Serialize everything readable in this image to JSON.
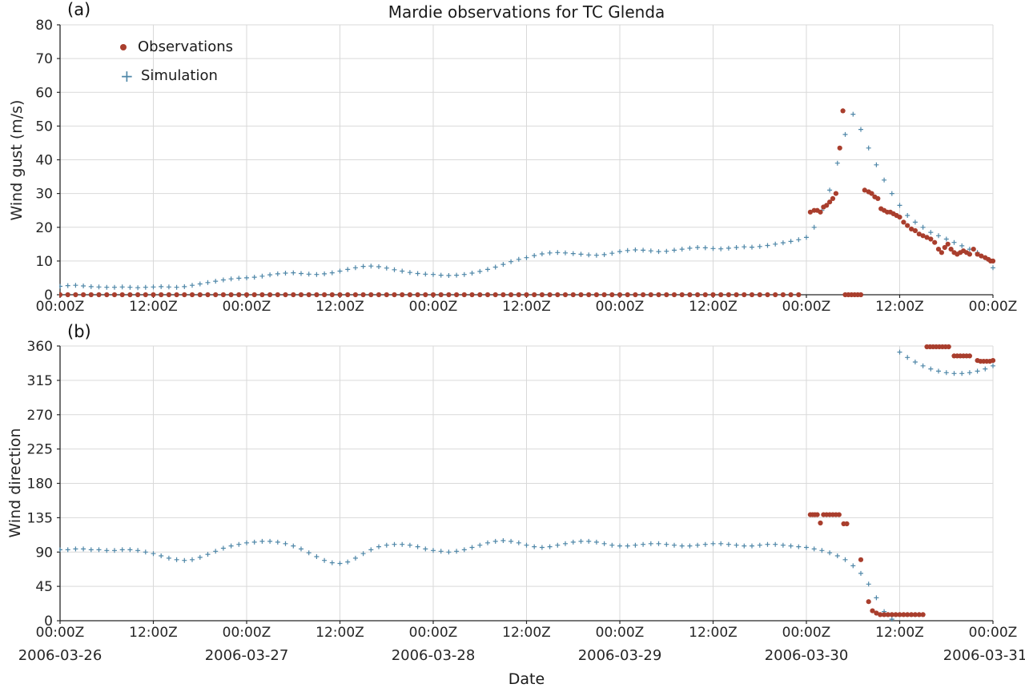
{
  "figure": {
    "title": "Mardie observations for TC Glenda",
    "xlabel": "Date",
    "panel_labels": {
      "a": "(a)",
      "b": "(b)"
    },
    "legend": [
      {
        "label": "Observations",
        "marker": "dot"
      },
      {
        "label": "Simulation",
        "marker": "plus"
      }
    ],
    "colors": {
      "observations": "#a93e2d",
      "simulation": "#4f87a8",
      "grid": "#d9d9d9",
      "spine": "#262626",
      "text": "#262626"
    },
    "x_axis": {
      "unit": "hours since 2006-03-26 00:00Z",
      "range_hours": [
        0,
        120
      ],
      "tick_hours": [
        0,
        12,
        24,
        36,
        48,
        60,
        72,
        84,
        96,
        108,
        120
      ],
      "tick_labels": [
        "00:00Z",
        "12:00Z",
        "00:00Z",
        "12:00Z",
        "00:00Z",
        "12:00Z",
        "00:00Z",
        "12:00Z",
        "00:00Z",
        "12:00Z",
        "00:00Z"
      ],
      "date_tick_hours": [
        0,
        24,
        48,
        72,
        96,
        120
      ],
      "date_labels": [
        "2006-03-26",
        "2006-03-27",
        "2006-03-28",
        "2006-03-29",
        "2006-03-30",
        "2006-03-31"
      ]
    }
  },
  "chart_data": [
    {
      "id": "wind-gust",
      "type": "scatter",
      "title": "Mardie observations for TC Glenda",
      "ylabel": "Wind gust (m/s)",
      "ylim": [
        0,
        80
      ],
      "yticks": [
        0,
        10,
        20,
        30,
        40,
        50,
        60,
        70,
        80
      ],
      "grid": true,
      "legend_position": "upper left",
      "series": [
        {
          "name": "Simulation",
          "marker": "plus",
          "t_start": 0,
          "t_step": 1,
          "values": [
            2.5,
            2.7,
            2.8,
            2.6,
            2.4,
            2.3,
            2.2,
            2.2,
            2.3,
            2.2,
            2.1,
            2.2,
            2.3,
            2.4,
            2.3,
            2.2,
            2.4,
            2.8,
            3.2,
            3.6,
            4.0,
            4.4,
            4.7,
            4.9,
            5.0,
            5.2,
            5.5,
            5.9,
            6.2,
            6.4,
            6.5,
            6.3,
            6.1,
            6.0,
            6.2,
            6.5,
            7.0,
            7.5,
            8.0,
            8.4,
            8.5,
            8.3,
            7.9,
            7.4,
            7.0,
            6.6,
            6.3,
            6.1,
            6.0,
            5.8,
            5.7,
            5.8,
            6.0,
            6.4,
            6.9,
            7.5,
            8.2,
            9.0,
            9.8,
            10.5,
            11.0,
            11.6,
            12.1,
            12.4,
            12.5,
            12.4,
            12.2,
            12.0,
            11.8,
            11.7,
            11.9,
            12.3,
            12.8,
            13.1,
            13.3,
            13.2,
            13.0,
            12.8,
            12.9,
            13.2,
            13.5,
            13.8,
            14.0,
            13.9,
            13.7,
            13.6,
            13.8,
            14.0,
            14.2,
            14.1,
            14.3,
            14.6,
            15.0,
            15.4,
            15.8,
            16.3,
            17.0,
            20.0,
            25.0,
            31.0,
            39.0,
            47.5,
            53.5,
            49.0,
            43.5,
            38.5,
            34.0,
            30.0,
            26.5,
            23.5,
            21.5,
            20.0,
            18.5,
            17.5,
            16.5,
            15.5,
            14.5,
            13.5,
            12.5,
            11.0,
            8.0
          ]
        },
        {
          "name": "Observations",
          "marker": "dot",
          "points": [
            [
              0,
              0
            ],
            [
              1,
              0
            ],
            [
              2,
              0
            ],
            [
              3,
              0
            ],
            [
              4,
              0
            ],
            [
              5,
              0
            ],
            [
              6,
              0
            ],
            [
              7,
              0
            ],
            [
              8,
              0
            ],
            [
              9,
              0
            ],
            [
              10,
              0
            ],
            [
              11,
              0
            ],
            [
              12,
              0
            ],
            [
              13,
              0
            ],
            [
              14,
              0
            ],
            [
              15,
              0
            ],
            [
              16,
              0
            ],
            [
              17,
              0
            ],
            [
              18,
              0
            ],
            [
              19,
              0
            ],
            [
              20,
              0
            ],
            [
              21,
              0
            ],
            [
              22,
              0
            ],
            [
              23,
              0
            ],
            [
              24,
              0
            ],
            [
              25,
              0
            ],
            [
              26,
              0
            ],
            [
              27,
              0
            ],
            [
              28,
              0
            ],
            [
              29,
              0
            ],
            [
              30,
              0
            ],
            [
              31,
              0
            ],
            [
              32,
              0
            ],
            [
              33,
              0
            ],
            [
              34,
              0
            ],
            [
              35,
              0
            ],
            [
              36,
              0
            ],
            [
              37,
              0
            ],
            [
              38,
              0
            ],
            [
              39,
              0
            ],
            [
              40,
              0
            ],
            [
              41,
              0
            ],
            [
              42,
              0
            ],
            [
              43,
              0
            ],
            [
              44,
              0
            ],
            [
              45,
              0
            ],
            [
              46,
              0
            ],
            [
              47,
              0
            ],
            [
              48,
              0
            ],
            [
              49,
              0
            ],
            [
              50,
              0
            ],
            [
              51,
              0
            ],
            [
              52,
              0
            ],
            [
              53,
              0
            ],
            [
              54,
              0
            ],
            [
              55,
              0
            ],
            [
              56,
              0
            ],
            [
              57,
              0
            ],
            [
              58,
              0
            ],
            [
              59,
              0
            ],
            [
              60,
              0
            ],
            [
              61,
              0
            ],
            [
              62,
              0
            ],
            [
              63,
              0
            ],
            [
              64,
              0
            ],
            [
              65,
              0
            ],
            [
              66,
              0
            ],
            [
              67,
              0
            ],
            [
              68,
              0
            ],
            [
              69,
              0
            ],
            [
              70,
              0
            ],
            [
              71,
              0
            ],
            [
              72,
              0
            ],
            [
              73,
              0
            ],
            [
              74,
              0
            ],
            [
              75,
              0
            ],
            [
              76,
              0
            ],
            [
              77,
              0
            ],
            [
              78,
              0
            ],
            [
              79,
              0
            ],
            [
              80,
              0
            ],
            [
              81,
              0
            ],
            [
              82,
              0
            ],
            [
              83,
              0
            ],
            [
              84,
              0
            ],
            [
              85,
              0
            ],
            [
              86,
              0
            ],
            [
              87,
              0
            ],
            [
              88,
              0
            ],
            [
              89,
              0
            ],
            [
              90,
              0
            ],
            [
              91,
              0
            ],
            [
              92,
              0
            ],
            [
              93,
              0
            ],
            [
              94,
              0
            ],
            [
              95,
              0
            ],
            [
              96.5,
              24.5
            ],
            [
              97,
              25
            ],
            [
              97.4,
              25
            ],
            [
              97.8,
              24.5
            ],
            [
              98.2,
              26
            ],
            [
              98.6,
              26.5
            ],
            [
              99,
              27.5
            ],
            [
              99.4,
              28.5
            ],
            [
              99.8,
              30
            ],
            [
              100.3,
              43.5
            ],
            [
              100.7,
              54.5
            ],
            [
              101,
              0
            ],
            [
              101.4,
              0
            ],
            [
              101.8,
              0
            ],
            [
              102.2,
              0
            ],
            [
              102.6,
              0
            ],
            [
              103,
              0
            ],
            [
              103.5,
              31
            ],
            [
              104,
              30.5
            ],
            [
              104.4,
              30
            ],
            [
              104.8,
              29
            ],
            [
              105.2,
              28.5
            ],
            [
              105.6,
              25.5
            ],
            [
              106,
              25
            ],
            [
              106.4,
              24.5
            ],
            [
              106.8,
              24.5
            ],
            [
              107.2,
              24
            ],
            [
              107.6,
              23.5
            ],
            [
              108,
              23
            ],
            [
              108.5,
              21.5
            ],
            [
              109,
              20.5
            ],
            [
              109.5,
              19.5
            ],
            [
              110,
              19
            ],
            [
              110.5,
              18
            ],
            [
              111,
              17.5
            ],
            [
              111.5,
              17
            ],
            [
              112,
              16.5
            ],
            [
              112.5,
              15.5
            ],
            [
              113,
              13.5
            ],
            [
              113.4,
              12.5
            ],
            [
              113.8,
              14
            ],
            [
              114.2,
              15
            ],
            [
              114.6,
              13.5
            ],
            [
              115,
              12.5
            ],
            [
              115.4,
              12
            ],
            [
              115.8,
              12.5
            ],
            [
              116.2,
              13
            ],
            [
              116.6,
              12.5
            ],
            [
              117,
              12
            ],
            [
              117.5,
              13.5
            ],
            [
              118,
              12
            ],
            [
              118.5,
              11.5
            ],
            [
              119,
              11
            ],
            [
              119.4,
              10.5
            ],
            [
              119.7,
              10
            ],
            [
              120,
              10
            ]
          ]
        }
      ]
    },
    {
      "id": "wind-direction",
      "type": "scatter",
      "ylabel": "Wind direction",
      "ylim": [
        0,
        360
      ],
      "yticks": [
        0,
        45,
        90,
        135,
        180,
        225,
        270,
        315,
        360
      ],
      "grid": true,
      "series": [
        {
          "name": "Simulation",
          "marker": "plus",
          "t_start": 0,
          "t_step": 1,
          "values": [
            93,
            93,
            94,
            94,
            93,
            93,
            92,
            92,
            93,
            93,
            92,
            90,
            88,
            85,
            82,
            80,
            79,
            80,
            83,
            87,
            91,
            95,
            98,
            100,
            102,
            103,
            104,
            104,
            103,
            101,
            98,
            94,
            89,
            84,
            79,
            76,
            75,
            77,
            82,
            88,
            93,
            97,
            99,
            100,
            100,
            99,
            97,
            94,
            92,
            91,
            90,
            91,
            93,
            96,
            99,
            102,
            104,
            105,
            104,
            102,
            99,
            97,
            96,
            97,
            99,
            101,
            103,
            104,
            104,
            103,
            101,
            99,
            98,
            98,
            99,
            100,
            101,
            101,
            100,
            99,
            98,
            98,
            99,
            100,
            101,
            101,
            100,
            99,
            98,
            98,
            99,
            100,
            100,
            99,
            98,
            97,
            96,
            94,
            92,
            89,
            85,
            80,
            72,
            62,
            48,
            30,
            12,
            2,
            352,
            345,
            339,
            334,
            330,
            327,
            325,
            324,
            324,
            325,
            327,
            330,
            334
          ]
        },
        {
          "name": "Observations",
          "marker": "dot",
          "points": [
            [
              96.5,
              139
            ],
            [
              96.8,
              139
            ],
            [
              97.1,
              139
            ],
            [
              97.4,
              139
            ],
            [
              97.8,
              128
            ],
            [
              98.2,
              139
            ],
            [
              98.6,
              139
            ],
            [
              99,
              139
            ],
            [
              99.4,
              139
            ],
            [
              99.8,
              139
            ],
            [
              100.2,
              139
            ],
            [
              100.8,
              127
            ],
            [
              101.2,
              127
            ],
            [
              103,
              80
            ],
            [
              104,
              25
            ],
            [
              104.5,
              13
            ],
            [
              105,
              10
            ],
            [
              105.5,
              8
            ],
            [
              106,
              8
            ],
            [
              106.5,
              8
            ],
            [
              107,
              8
            ],
            [
              107.5,
              8
            ],
            [
              108,
              8
            ],
            [
              108.5,
              8
            ],
            [
              109,
              8
            ],
            [
              109.5,
              8
            ],
            [
              110,
              8
            ],
            [
              110.5,
              8
            ],
            [
              111,
              8
            ],
            [
              111.5,
              359
            ],
            [
              111.9,
              359
            ],
            [
              112.3,
              359
            ],
            [
              112.7,
              359
            ],
            [
              113.1,
              359
            ],
            [
              113.5,
              359
            ],
            [
              113.9,
              359
            ],
            [
              114.3,
              359
            ],
            [
              115,
              347
            ],
            [
              115.4,
              347
            ],
            [
              115.8,
              347
            ],
            [
              116.2,
              347
            ],
            [
              116.6,
              347
            ],
            [
              117,
              347
            ],
            [
              118,
              341
            ],
            [
              118.4,
              340
            ],
            [
              118.8,
              340
            ],
            [
              119.2,
              340
            ],
            [
              119.6,
              340
            ],
            [
              120,
              341
            ]
          ]
        }
      ]
    }
  ]
}
